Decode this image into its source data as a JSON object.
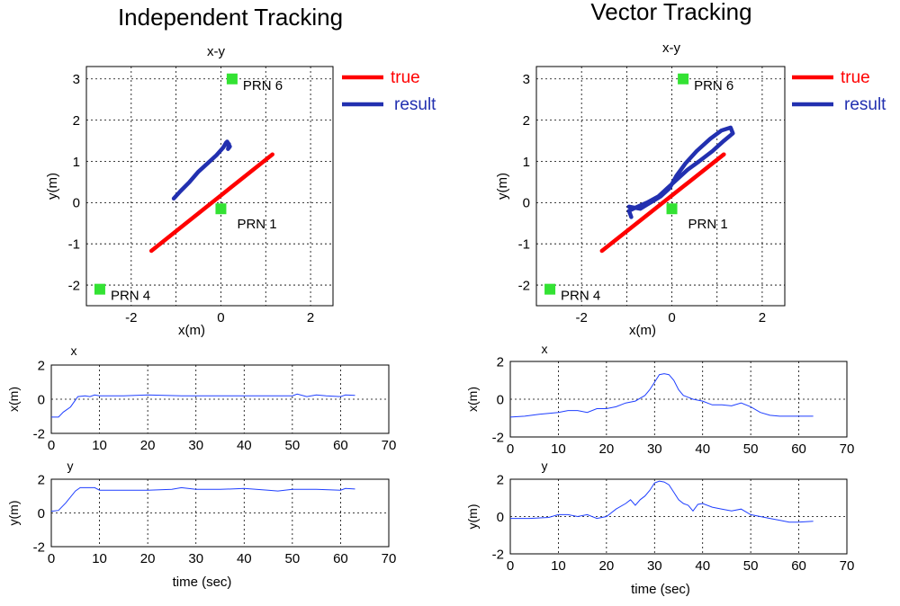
{
  "panels": [
    {
      "title": "Independent Tracking",
      "xy": {
        "title": "x-y",
        "xlabel": "x(m)",
        "ylabel": "y(m)",
        "xlim": [
          -3,
          2.5
        ],
        "ylim": [
          -2.5,
          3.3
        ],
        "xticks": [
          -2,
          0,
          2
        ],
        "yticks": [
          -2,
          -1,
          0,
          1,
          2,
          3
        ],
        "legend": [
          {
            "label": "true",
            "color": "#ff0000"
          },
          {
            "label": "result",
            "color": "#2230b0"
          }
        ],
        "true_line": [
          [
            -1.55,
            -1.17
          ],
          [
            1.15,
            1.17
          ]
        ],
        "result_path": [
          [
            -1.05,
            0.1
          ],
          [
            -0.9,
            0.28
          ],
          [
            -0.7,
            0.5
          ],
          [
            -0.5,
            0.75
          ],
          [
            -0.3,
            0.95
          ],
          [
            -0.1,
            1.15
          ],
          [
            0.05,
            1.33
          ],
          [
            0.12,
            1.46
          ],
          [
            0.18,
            1.42
          ],
          [
            0.16,
            1.3
          ],
          [
            0.2,
            1.36
          ],
          [
            0.14,
            1.48
          ]
        ],
        "satellites": [
          {
            "label": "PRN 6",
            "x": 0.25,
            "y": 3.0
          },
          {
            "label": "PRN 1",
            "x": 0.0,
            "y": -0.15
          },
          {
            "label": "PRN 4",
            "x": -2.7,
            "y": -2.1
          }
        ]
      },
      "x_series": {
        "title": "x",
        "ylabel": "x(m)",
        "xlim": [
          0,
          70
        ],
        "ylim": [
          -2,
          2
        ],
        "xticks": [
          0,
          10,
          20,
          30,
          40,
          50,
          60,
          70
        ],
        "yticks": [
          -2,
          0,
          2
        ],
        "points": [
          [
            0,
            -1.05
          ],
          [
            1.5,
            -1.05
          ],
          [
            2.5,
            -0.75
          ],
          [
            4,
            -0.45
          ],
          [
            5.5,
            0.15
          ],
          [
            7,
            0.2
          ],
          [
            8,
            0.15
          ],
          [
            9,
            0.25
          ],
          [
            10,
            0.2
          ],
          [
            15,
            0.2
          ],
          [
            20,
            0.25
          ],
          [
            27,
            0.2
          ],
          [
            30,
            0.2
          ],
          [
            40,
            0.2
          ],
          [
            50,
            0.2
          ],
          [
            51,
            0.3
          ],
          [
            53,
            0.15
          ],
          [
            55,
            0.25
          ],
          [
            57,
            0.2
          ],
          [
            60,
            0.15
          ],
          [
            61,
            0.25
          ],
          [
            63,
            0.22
          ]
        ]
      },
      "y_series": {
        "title": "y",
        "ylabel": "y(m)",
        "xlim": [
          0,
          70
        ],
        "ylim": [
          -2,
          2
        ],
        "xticks": [
          0,
          10,
          20,
          30,
          40,
          50,
          60,
          70
        ],
        "yticks": [
          -2,
          0,
          2
        ],
        "xlabel": "time (sec)",
        "points": [
          [
            0,
            0.1
          ],
          [
            1.5,
            0.15
          ],
          [
            3,
            0.6
          ],
          [
            5,
            1.3
          ],
          [
            6,
            1.5
          ],
          [
            9,
            1.5
          ],
          [
            10,
            1.35
          ],
          [
            15,
            1.35
          ],
          [
            20,
            1.35
          ],
          [
            25,
            1.4
          ],
          [
            27,
            1.5
          ],
          [
            30,
            1.4
          ],
          [
            35,
            1.4
          ],
          [
            40,
            1.45
          ],
          [
            45,
            1.35
          ],
          [
            47,
            1.3
          ],
          [
            50,
            1.4
          ],
          [
            55,
            1.4
          ],
          [
            60,
            1.35
          ],
          [
            61,
            1.45
          ],
          [
            63,
            1.42
          ]
        ]
      }
    },
    {
      "title": "Vector Tracking",
      "xy": {
        "title": "x-y",
        "xlabel": "x(m)",
        "ylabel": "y(m)",
        "xlim": [
          -3,
          2.5
        ],
        "ylim": [
          -2.5,
          3.3
        ],
        "xticks": [
          -2,
          0,
          2
        ],
        "yticks": [
          -2,
          -1,
          0,
          1,
          2,
          3
        ],
        "legend": [
          {
            "label": "true",
            "color": "#ff0000"
          },
          {
            "label": "result",
            "color": "#2230b0"
          }
        ],
        "true_line": [
          [
            -1.55,
            -1.17
          ],
          [
            1.15,
            1.17
          ]
        ],
        "result_path": [
          [
            -0.95,
            -0.1
          ],
          [
            -0.7,
            -0.15
          ],
          [
            -0.55,
            -0.05
          ],
          [
            -0.4,
            0.05
          ],
          [
            -0.25,
            0.15
          ],
          [
            -0.05,
            0.35
          ],
          [
            0.1,
            0.65
          ],
          [
            0.3,
            0.95
          ],
          [
            0.55,
            1.25
          ],
          [
            0.85,
            1.55
          ],
          [
            1.1,
            1.75
          ],
          [
            1.3,
            1.82
          ],
          [
            1.35,
            1.68
          ],
          [
            1.15,
            1.5
          ],
          [
            0.9,
            1.25
          ],
          [
            0.6,
            1.0
          ],
          [
            0.35,
            0.8
          ],
          [
            0.1,
            0.55
          ],
          [
            -0.1,
            0.35
          ],
          [
            -0.3,
            0.15
          ],
          [
            -0.55,
            0.0
          ],
          [
            -0.8,
            -0.12
          ],
          [
            -0.95,
            -0.2
          ],
          [
            -0.9,
            -0.35
          ]
        ],
        "satellites": [
          {
            "label": "PRN 6",
            "x": 0.25,
            "y": 3.0
          },
          {
            "label": "PRN 1",
            "x": 0.0,
            "y": -0.15
          },
          {
            "label": "PRN 4",
            "x": -2.7,
            "y": -2.1
          }
        ]
      },
      "x_series": {
        "title": "x",
        "ylabel": "x(m)",
        "xlim": [
          0,
          70
        ],
        "ylim": [
          -2,
          2
        ],
        "xticks": [
          0,
          10,
          20,
          30,
          40,
          50,
          60,
          70
        ],
        "yticks": [
          -2,
          0,
          2
        ],
        "points": [
          [
            0,
            -0.95
          ],
          [
            3,
            -0.9
          ],
          [
            6,
            -0.8
          ],
          [
            10,
            -0.7
          ],
          [
            12,
            -0.6
          ],
          [
            14,
            -0.6
          ],
          [
            16,
            -0.7
          ],
          [
            18,
            -0.5
          ],
          [
            20,
            -0.5
          ],
          [
            22,
            -0.4
          ],
          [
            24,
            -0.2
          ],
          [
            26,
            -0.1
          ],
          [
            27,
            0.05
          ],
          [
            28,
            0.2
          ],
          [
            29,
            0.5
          ],
          [
            30,
            0.9
          ],
          [
            31,
            1.3
          ],
          [
            32,
            1.35
          ],
          [
            33,
            1.3
          ],
          [
            34,
            1.0
          ],
          [
            35,
            0.5
          ],
          [
            36,
            0.2
          ],
          [
            38,
            0.0
          ],
          [
            40,
            -0.1
          ],
          [
            42,
            -0.3
          ],
          [
            44,
            -0.3
          ],
          [
            46,
            -0.35
          ],
          [
            48,
            -0.2
          ],
          [
            50,
            -0.4
          ],
          [
            52,
            -0.7
          ],
          [
            54,
            -0.85
          ],
          [
            56,
            -0.9
          ],
          [
            60,
            -0.9
          ],
          [
            63,
            -0.9
          ]
        ]
      },
      "y_series": {
        "title": "y",
        "ylabel": "y(m)",
        "xlim": [
          0,
          70
        ],
        "ylim": [
          -2,
          2
        ],
        "xticks": [
          0,
          10,
          20,
          30,
          40,
          50,
          60,
          70
        ],
        "yticks": [
          -2,
          0,
          2
        ],
        "xlabel": "time (sec)",
        "points": [
          [
            0,
            -0.1
          ],
          [
            4,
            -0.1
          ],
          [
            8,
            -0.05
          ],
          [
            10,
            0.1
          ],
          [
            12,
            0.1
          ],
          [
            14,
            0.0
          ],
          [
            16,
            0.1
          ],
          [
            18,
            -0.1
          ],
          [
            20,
            0.0
          ],
          [
            22,
            0.4
          ],
          [
            24,
            0.7
          ],
          [
            25,
            0.9
          ],
          [
            26,
            0.6
          ],
          [
            27,
            0.9
          ],
          [
            28,
            1.1
          ],
          [
            29,
            1.4
          ],
          [
            30,
            1.8
          ],
          [
            31,
            1.9
          ],
          [
            32,
            1.85
          ],
          [
            33,
            1.7
          ],
          [
            34,
            1.3
          ],
          [
            35,
            0.9
          ],
          [
            36,
            0.7
          ],
          [
            37,
            0.6
          ],
          [
            38,
            0.3
          ],
          [
            39,
            0.65
          ],
          [
            40,
            0.7
          ],
          [
            42,
            0.5
          ],
          [
            44,
            0.4
          ],
          [
            46,
            0.3
          ],
          [
            48,
            0.4
          ],
          [
            50,
            0.1
          ],
          [
            52,
            0.0
          ],
          [
            54,
            -0.1
          ],
          [
            56,
            -0.2
          ],
          [
            58,
            -0.3
          ],
          [
            60,
            -0.3
          ],
          [
            63,
            -0.25
          ]
        ]
      }
    }
  ],
  "chart_data": [
    {
      "panel": "Independent Tracking",
      "type": "scatter",
      "title": "x-y",
      "xlabel": "x(m)",
      "ylabel": "y(m)"
    },
    {
      "panel": "Independent Tracking",
      "type": "line",
      "title": "x",
      "xlabel": "",
      "ylabel": "x(m)"
    },
    {
      "panel": "Independent Tracking",
      "type": "line",
      "title": "y",
      "xlabel": "time (sec)",
      "ylabel": "y(m)"
    },
    {
      "panel": "Vector Tracking",
      "type": "scatter",
      "title": "x-y",
      "xlabel": "x(m)",
      "ylabel": "y(m)"
    },
    {
      "panel": "Vector Tracking",
      "type": "line",
      "title": "x",
      "xlabel": "",
      "ylabel": "x(m)"
    },
    {
      "panel": "Vector Tracking",
      "type": "line",
      "title": "y",
      "xlabel": "time (sec)",
      "ylabel": "y(m)"
    }
  ],
  "colors": {
    "true": "#ff0000",
    "result": "#2230b0",
    "series": "#1f3fff",
    "satellite": "#33e233",
    "grid": "#000000"
  }
}
